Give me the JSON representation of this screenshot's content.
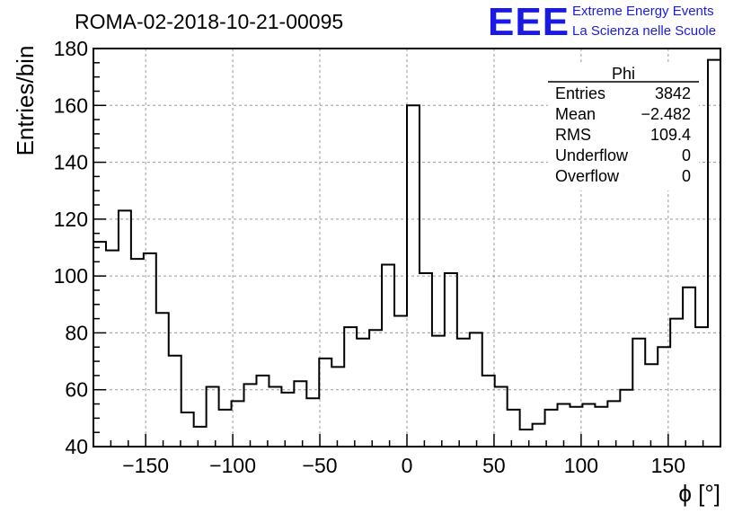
{
  "chart_data": {
    "type": "histogram",
    "title": "ROMA-02-2018-10-21-00095",
    "xlabel": "ϕ [°]",
    "ylabel": "Entries/bin",
    "xlim": [
      -180,
      180
    ],
    "ylim": [
      40,
      180
    ],
    "xticks": [
      -150,
      -100,
      -50,
      0,
      50,
      100,
      150
    ],
    "yticks": [
      40,
      60,
      80,
      100,
      120,
      140,
      160,
      180
    ],
    "grid": true,
    "bin_width": 7.2,
    "bin_edges_start": -180,
    "values": [
      112,
      109,
      123,
      106,
      108,
      87,
      72,
      52,
      47,
      61,
      53,
      56,
      62,
      65,
      61,
      59,
      63,
      57,
      71,
      68,
      82,
      78,
      81,
      104,
      86,
      160,
      101,
      79,
      101,
      78,
      80,
      65,
      61,
      53,
      46,
      48,
      53,
      55,
      54,
      55,
      54,
      56,
      60,
      78,
      69,
      75,
      85,
      96,
      82,
      176
    ],
    "stats": {
      "name": "Phi",
      "rows": [
        {
          "label": "Entries",
          "value": "3842"
        },
        {
          "label": "Mean",
          "value": "−2.482"
        },
        {
          "label": "RMS",
          "value": "109.4"
        },
        {
          "label": "Underflow",
          "value": "0"
        },
        {
          "label": "Overflow",
          "value": "0"
        }
      ]
    }
  },
  "logo": {
    "mark": "EEE",
    "line1": "Extreme Energy Events",
    "line2": "La Scienza nelle Scuole",
    "color": "#1a1ae6"
  }
}
